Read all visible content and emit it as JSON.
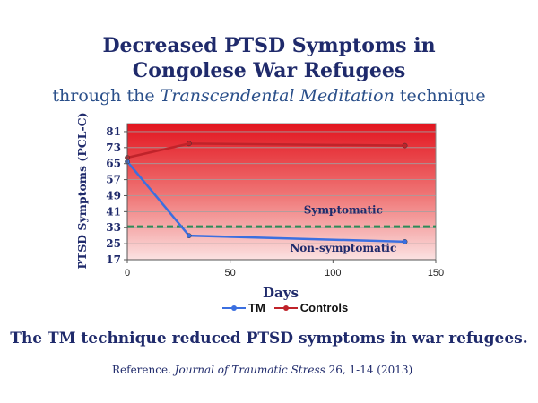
{
  "header": {
    "title_line1": "Decreased PTSD Symptoms in",
    "title_line2": "Congolese War Refugees",
    "subtitle_prefix": "through the ",
    "subtitle_italic": "Transcendental Meditation",
    "subtitle_suffix": " technique"
  },
  "footer": {
    "conclusion": "The TM technique reduced PTSD symptoms in war refugees.",
    "reference_label": "Reference.",
    "reference_journal": "Journal of Traumatic Stress",
    "reference_detail": " 26, 1-14 (2013)"
  },
  "colors": {
    "tm": "#3b6fe0",
    "controls": "#c0232a",
    "threshold": "#2e8b57"
  },
  "chart_data": {
    "type": "line",
    "xlabel": "Days",
    "ylabel": "PTSD Symptoms (PCL-C)",
    "xlim": [
      0,
      150
    ],
    "ylim": [
      17,
      85
    ],
    "x_ticks": [
      0,
      50,
      100,
      150
    ],
    "y_ticks": [
      17,
      25,
      33,
      41,
      49,
      57,
      65,
      73,
      81
    ],
    "grid": true,
    "legend_position": "bottom",
    "series": [
      {
        "name": "TM",
        "x": [
          0,
          30,
          135
        ],
        "y": [
          66,
          29,
          26
        ],
        "color": "#3b6fe0"
      },
      {
        "name": "Controls",
        "x": [
          0,
          30,
          135
        ],
        "y": [
          68,
          75,
          74
        ],
        "color": "#c0232a"
      }
    ],
    "threshold": {
      "y": 33.5
    },
    "annotations": [
      {
        "text": "Symptomatic",
        "x": 105,
        "y": 40
      },
      {
        "text": "Non-symptomatic",
        "x": 105,
        "y": 21
      }
    ]
  }
}
